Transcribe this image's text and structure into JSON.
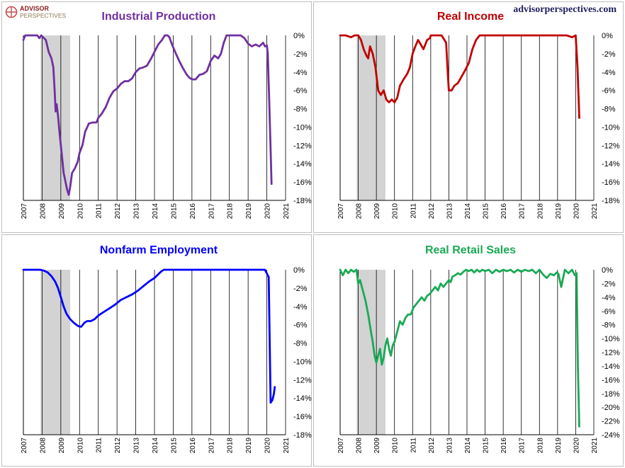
{
  "brand": {
    "logo_line1": "ADVISOR",
    "logo_line2": "PERSPECTIVES",
    "site": "advisorperspectives.com"
  },
  "colors": {
    "industrial": "#7030a0",
    "income": "#c00000",
    "employment": "#0000ff",
    "retail": "#1aaa55",
    "recession": "#d3d3d3"
  },
  "x_years": [
    "2007",
    "2008",
    "2009",
    "2010",
    "2011",
    "2012",
    "2013",
    "2014",
    "2015",
    "2016",
    "2017",
    "2018",
    "2019",
    "2020",
    "2021"
  ],
  "recession": {
    "start": 2007.917,
    "end": 2009.5
  },
  "chart_data": [
    {
      "type": "line",
      "title": "Industrial Production",
      "color": "#7030a0",
      "xlim": [
        2007,
        2021
      ],
      "ylim": [
        -18,
        0
      ],
      "yticks": [
        0,
        -2,
        -4,
        -6,
        -8,
        -10,
        -12,
        -14,
        -16,
        -18
      ],
      "x": [
        2007.0,
        2007.1,
        2007.2,
        2007.4,
        2007.6,
        2007.75,
        2007.85,
        2007.95,
        2008.05,
        2008.2,
        2008.35,
        2008.5,
        2008.6,
        2008.67,
        2008.72,
        2008.78,
        2008.85,
        2008.95,
        2009.05,
        2009.15,
        2009.25,
        2009.33,
        2009.42,
        2009.5,
        2009.6,
        2009.75,
        2009.9,
        2010.0,
        2010.15,
        2010.3,
        2010.5,
        2010.7,
        2010.9,
        2011.0,
        2011.2,
        2011.4,
        2011.6,
        2011.8,
        2012.0,
        2012.2,
        2012.4,
        2012.6,
        2012.8,
        2013.0,
        2013.2,
        2013.4,
        2013.6,
        2013.8,
        2014.0,
        2014.2,
        2014.4,
        2014.55,
        2014.7,
        2014.8,
        2014.9,
        2015.1,
        2015.3,
        2015.5,
        2015.7,
        2015.85,
        2016.0,
        2016.2,
        2016.4,
        2016.6,
        2016.8,
        2017.0,
        2017.2,
        2017.4,
        2017.55,
        2017.7,
        2017.85,
        2018.0,
        2018.2,
        2018.4,
        2018.6,
        2018.8,
        2019.0,
        2019.2,
        2019.4,
        2019.6,
        2019.8,
        2019.9,
        2020.0,
        2020.05,
        2020.12,
        2020.2,
        2020.25
      ],
      "y": [
        -0.5,
        0,
        0,
        0,
        0,
        0,
        -0.3,
        0,
        -0.2,
        -0.5,
        -1.8,
        -2.5,
        -3.5,
        -6.0,
        -8.3,
        -7.5,
        -8.8,
        -11.0,
        -13.0,
        -15.0,
        -16.0,
        -16.8,
        -17.4,
        -16.5,
        -15.0,
        -14.5,
        -13.8,
        -12.8,
        -12.0,
        -10.5,
        -9.6,
        -9.5,
        -9.5,
        -9.0,
        -8.5,
        -7.8,
        -6.8,
        -6.1,
        -5.8,
        -5.3,
        -5.0,
        -5.0,
        -4.7,
        -4.0,
        -3.6,
        -3.5,
        -3.3,
        -2.6,
        -1.8,
        -1.0,
        -0.5,
        0,
        0,
        -0.2,
        -0.8,
        -1.8,
        -2.7,
        -3.5,
        -4.2,
        -4.6,
        -4.8,
        -4.8,
        -4.3,
        -4.2,
        -3.9,
        -2.8,
        -2.2,
        -2.5,
        -2.0,
        -0.8,
        0,
        0,
        0,
        0,
        0,
        -0.3,
        -0.9,
        -1.2,
        -1.0,
        -1.2,
        -0.8,
        -1.2,
        -1.1,
        -2.0,
        -6.5,
        -12.5,
        -16.2
      ]
    },
    {
      "type": "line",
      "title": "Real Income",
      "color": "#c00000",
      "xlim": [
        2007,
        2021
      ],
      "ylim": [
        -18,
        0
      ],
      "yticks": [
        0,
        -2,
        -4,
        -6,
        -8,
        -10,
        -12,
        -14,
        -16,
        -18
      ],
      "x": [
        2007.0,
        2007.3,
        2007.6,
        2007.8,
        2008.0,
        2008.15,
        2008.3,
        2008.45,
        2008.55,
        2008.65,
        2008.8,
        2008.95,
        2009.1,
        2009.25,
        2009.4,
        2009.55,
        2009.7,
        2009.85,
        2010.0,
        2010.15,
        2010.3,
        2010.5,
        2010.7,
        2010.85,
        2011.0,
        2011.15,
        2011.3,
        2011.45,
        2011.6,
        2011.8,
        2011.95,
        2012.0,
        2012.3,
        2012.6,
        2012.85,
        2012.95,
        2013.0,
        2013.15,
        2013.3,
        2013.5,
        2013.7,
        2013.9,
        2014.1,
        2014.3,
        2014.5,
        2014.7,
        2014.9,
        2015.0,
        2015.5,
        2016.0,
        2016.5,
        2017.0,
        2017.5,
        2018.0,
        2018.5,
        2019.0,
        2019.5,
        2019.8,
        2020.0,
        2020.1,
        2020.2
      ],
      "y": [
        0,
        0,
        -0.2,
        0,
        0,
        -0.5,
        -1.5,
        -2.2,
        -2.5,
        -1.2,
        -2.0,
        -3.5,
        -6.0,
        -6.5,
        -6.0,
        -7.0,
        -7.3,
        -7.0,
        -7.3,
        -6.8,
        -5.5,
        -4.8,
        -4.2,
        -3.5,
        -2.0,
        -1.2,
        -0.5,
        -1.0,
        -1.5,
        -0.5,
        -0.3,
        0,
        0,
        0,
        -0.8,
        -4.5,
        -6.0,
        -6.0,
        -5.5,
        -5.2,
        -4.5,
        -3.8,
        -3.0,
        -1.5,
        -0.5,
        0,
        0,
        0,
        0,
        0,
        0,
        0,
        0,
        0,
        0,
        0,
        0,
        -0.2,
        0,
        -3.5,
        -9.0
      ]
    },
    {
      "type": "line",
      "title": "Nonfarm Employment",
      "color": "#0000ff",
      "xlim": [
        2007,
        2021
      ],
      "ylim": [
        -18,
        0
      ],
      "yticks": [
        0,
        -2,
        -4,
        -6,
        -8,
        -10,
        -12,
        -14,
        -16,
        -18
      ],
      "x": [
        2007.0,
        2007.5,
        2007.9,
        2008.1,
        2008.3,
        2008.5,
        2008.7,
        2008.85,
        2009.0,
        2009.15,
        2009.3,
        2009.5,
        2009.7,
        2009.9,
        2010.0,
        2010.1,
        2010.25,
        2010.4,
        2010.6,
        2010.8,
        2011.0,
        2011.3,
        2011.6,
        2011.9,
        2012.2,
        2012.5,
        2012.8,
        2013.1,
        2013.4,
        2013.7,
        2014.0,
        2014.2,
        2014.35,
        2014.5,
        2015.0,
        2016.0,
        2017.0,
        2018.0,
        2019.0,
        2019.9,
        2020.1,
        2020.2,
        2020.3,
        2020.38,
        2020.42
      ],
      "y": [
        0,
        0,
        0,
        -0.1,
        -0.3,
        -0.7,
        -1.3,
        -2.0,
        -3.0,
        -4.0,
        -4.8,
        -5.4,
        -5.8,
        -6.1,
        -6.2,
        -6.2,
        -5.8,
        -5.6,
        -5.6,
        -5.4,
        -5.0,
        -4.6,
        -4.2,
        -3.8,
        -3.3,
        -3.0,
        -2.7,
        -2.3,
        -1.8,
        -1.3,
        -0.9,
        -0.5,
        -0.2,
        0,
        0,
        0,
        0,
        0,
        0,
        0,
        -0.8,
        -14.5,
        -14.2,
        -13.5,
        -12.8
      ]
    },
    {
      "type": "line",
      "title": "Real Retail Sales",
      "color": "#1aaa55",
      "xlim": [
        2007,
        2021
      ],
      "ylim": [
        -24,
        0
      ],
      "yticks": [
        0,
        -2,
        -4,
        -6,
        -8,
        -10,
        -12,
        -14,
        -16,
        -18,
        -20,
        -22,
        -24
      ],
      "x": [
        2007.0,
        2007.15,
        2007.3,
        2007.45,
        2007.6,
        2007.75,
        2007.9,
        2008.0,
        2008.1,
        2008.25,
        2008.4,
        2008.55,
        2008.7,
        2008.8,
        2008.9,
        2009.0,
        2009.1,
        2009.2,
        2009.3,
        2009.4,
        2009.5,
        2009.6,
        2009.7,
        2009.8,
        2009.9,
        2010.0,
        2010.15,
        2010.3,
        2010.45,
        2010.6,
        2010.75,
        2010.9,
        2011.05,
        2011.2,
        2011.35,
        2011.5,
        2011.65,
        2011.8,
        2011.95,
        2012.1,
        2012.25,
        2012.4,
        2012.55,
        2012.7,
        2012.85,
        2013.0,
        2013.1,
        2013.2,
        2013.35,
        2013.5,
        2013.65,
        2013.8,
        2013.95,
        2014.1,
        2014.25,
        2014.4,
        2014.55,
        2014.7,
        2014.85,
        2015.0,
        2015.2,
        2015.4,
        2015.6,
        2015.8,
        2016.0,
        2016.2,
        2016.4,
        2016.6,
        2016.8,
        2017.0,
        2017.2,
        2017.4,
        2017.6,
        2017.8,
        2018.0,
        2018.2,
        2018.4,
        2018.6,
        2018.8,
        2018.95,
        2019.05,
        2019.2,
        2019.4,
        2019.6,
        2019.8,
        2019.95,
        2020.05,
        2020.12,
        2020.2
      ],
      "y": [
        0,
        -0.8,
        0,
        -0.5,
        0,
        -0.3,
        0,
        -2.0,
        -1.5,
        -3.0,
        -4.5,
        -6.5,
        -9.0,
        -10.5,
        -12.5,
        -13.5,
        -12.5,
        -11.5,
        -13.8,
        -12.8,
        -11.0,
        -10.0,
        -11.5,
        -12.5,
        -11.0,
        -10.5,
        -9.0,
        -7.5,
        -8.0,
        -7.0,
        -6.5,
        -6.5,
        -5.5,
        -5.0,
        -4.5,
        -4.0,
        -4.5,
        -3.8,
        -3.5,
        -3.0,
        -2.5,
        -3.0,
        -2.0,
        -2.5,
        -2.0,
        -1.5,
        -1.8,
        -1.0,
        -0.8,
        -0.5,
        -0.7,
        -0.3,
        0,
        -0.2,
        0,
        -0.4,
        0,
        -0.3,
        0,
        -0.2,
        0,
        -0.5,
        0,
        -0.3,
        0,
        -0.2,
        0,
        -0.4,
        0,
        -0.3,
        0,
        -0.2,
        0,
        -0.5,
        0,
        -0.7,
        -1.2,
        -0.6,
        -0.8,
        -0.4,
        -0.6,
        -2.5,
        0,
        -0.5,
        0,
        -0.8,
        -0.5,
        -14.0,
        -22.8
      ]
    }
  ]
}
